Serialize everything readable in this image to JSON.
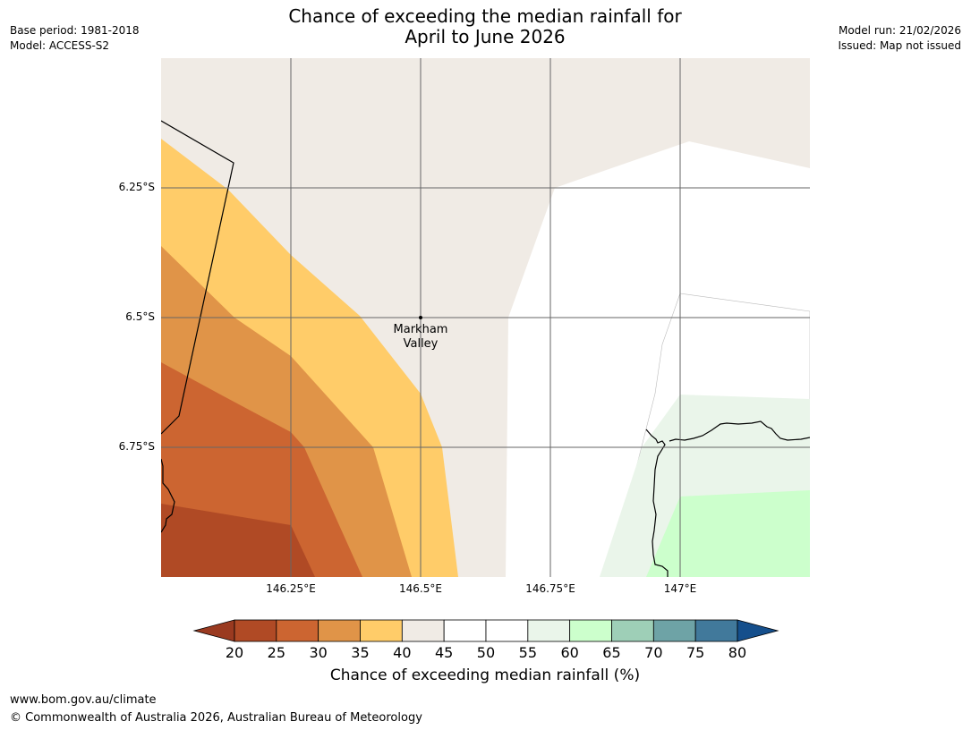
{
  "header": {
    "title_line1": "Chance of exceeding the median rainfall for",
    "title_line2": "April to June 2026",
    "base_period": "Base period: 1981-2018",
    "model": "Model: ACCESS-S2",
    "model_run": "Model run: 21/02/2026",
    "issued": "Issued: Map not issued"
  },
  "map": {
    "place_name_line1": "Markham",
    "place_name_line2": "Valley",
    "lat_labels": [
      "6.25°S",
      "6.5°S",
      "6.75°S"
    ],
    "lon_labels": [
      "146.25°E",
      "146.5°E",
      "146.75°E",
      "147°E"
    ]
  },
  "colorbar": {
    "title": "Chance of exceeding median rainfall (%)",
    "ticks": [
      "20",
      "25",
      "30",
      "35",
      "40",
      "45",
      "50",
      "55",
      "60",
      "65",
      "70",
      "75",
      "80"
    ],
    "colors": [
      "#b04a25",
      "#cc6531",
      "#e09448",
      "#ffcc69",
      "#f0ebe5",
      "#ffffff",
      "#ffffff",
      "#eaf5ea",
      "#ccffcc",
      "#9ecfb7",
      "#6ea3a6",
      "#41799b"
    ],
    "under_color": "#9a3a20",
    "over_color": "#154f8c"
  },
  "footer": {
    "url": "www.bom.gov.au/climate",
    "copyright": "© Commonwealth of Australia 2026, Australian Bureau of Meteorology"
  }
}
